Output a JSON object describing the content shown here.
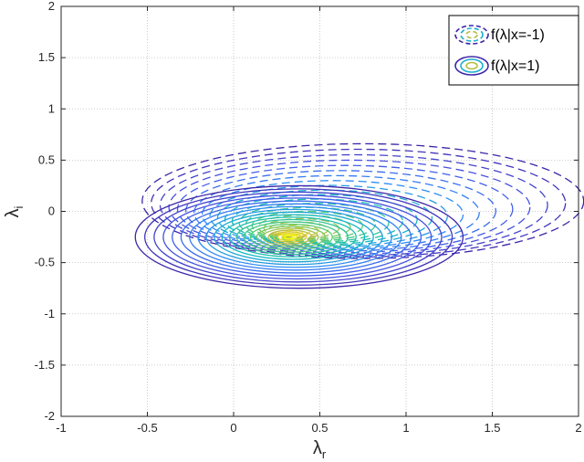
{
  "chart_data": {
    "type": "contour",
    "xlabel": "λ",
    "xlabel_sub": "r",
    "ylabel": "λ",
    "ylabel_sub": "i",
    "xlim": [
      -1,
      2
    ],
    "ylim": [
      -2,
      2
    ],
    "xticks": [
      -1,
      -0.5,
      0,
      0.5,
      1,
      1.5,
      2
    ],
    "xtick_labels": [
      "-1",
      "-0.5",
      "0",
      "0.5",
      "1",
      "1.5",
      "2"
    ],
    "yticks": [
      -2,
      -1.5,
      -1,
      -0.5,
      0,
      0.5,
      1,
      1.5,
      2
    ],
    "ytick_labels": [
      "-2",
      "-1.5",
      "-1",
      "-0.5",
      "0",
      "0.5",
      "1",
      "1.5",
      "2"
    ],
    "grid": true,
    "legend_position": "top-right",
    "series": [
      {
        "name": "f(λ|x=-1)",
        "line_style": "dashed",
        "center": [
          0.32,
          -0.22
        ],
        "outer_semi_axes": [
          1.28,
          0.56
        ],
        "outer_center": [
          0.75,
          0.1
        ],
        "levels": 22
      },
      {
        "name": "f(λ|x=1)",
        "line_style": "solid",
        "center": [
          0.32,
          -0.25
        ],
        "outer_semi_axes": [
          0.95,
          0.5
        ],
        "outer_center": [
          0.38,
          -0.25
        ],
        "levels": 22
      }
    ]
  }
}
